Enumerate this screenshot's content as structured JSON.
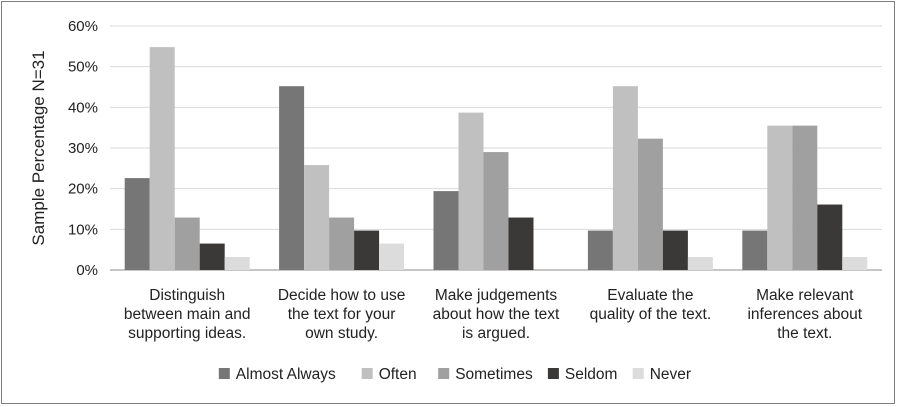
{
  "chart_data": {
    "type": "bar",
    "title": "",
    "xlabel": "",
    "ylabel": "Sample Percentage N=31",
    "ylim": [
      0,
      60
    ],
    "y_ticks": [
      "0%",
      "10%",
      "20%",
      "30%",
      "40%",
      "50%",
      "60%"
    ],
    "grid": true,
    "legend_position": "bottom",
    "categories": [
      [
        "Distinguish",
        "between main and",
        "supporting ideas."
      ],
      [
        "Decide how to use",
        "the text for your",
        "own study."
      ],
      [
        "Make judgements",
        "about how the text",
        "is argued."
      ],
      [
        "Evaluate the",
        "quality of the text."
      ],
      [
        "Make relevant",
        "inferences about",
        "the text."
      ]
    ],
    "series": [
      {
        "name": "Almost Always",
        "color": "#767676",
        "values": [
          22.6,
          45.2,
          19.4,
          9.7,
          9.7
        ]
      },
      {
        "name": "Often",
        "color": "#c0c0c0",
        "values": [
          54.8,
          25.8,
          38.7,
          45.2,
          35.5
        ]
      },
      {
        "name": "Sometimes",
        "color": "#a0a0a0",
        "values": [
          12.9,
          12.9,
          29.0,
          32.3,
          35.5
        ]
      },
      {
        "name": "Seldom",
        "color": "#3b3838",
        "values": [
          6.5,
          9.7,
          12.9,
          9.7,
          16.1
        ]
      },
      {
        "name": "Never",
        "color": "#dcdcdc",
        "values": [
          3.2,
          6.5,
          0,
          3.2,
          3.2
        ]
      }
    ]
  }
}
